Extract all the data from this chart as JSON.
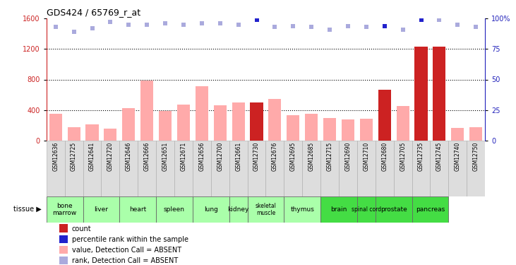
{
  "title": "GDS424 / 65769_r_at",
  "samples": [
    "GSM12636",
    "GSM12725",
    "GSM12641",
    "GSM12720",
    "GSM12646",
    "GSM12666",
    "GSM12651",
    "GSM12671",
    "GSM12656",
    "GSM12700",
    "GSM12661",
    "GSM12730",
    "GSM12676",
    "GSM12695",
    "GSM12685",
    "GSM12715",
    "GSM12690",
    "GSM12710",
    "GSM12680",
    "GSM12705",
    "GSM12735",
    "GSM12745",
    "GSM12740",
    "GSM12750"
  ],
  "bar_values": [
    350,
    175,
    215,
    155,
    420,
    785,
    390,
    475,
    715,
    465,
    500,
    495,
    545,
    330,
    350,
    290,
    280,
    285,
    665,
    455,
    1230,
    1235,
    165,
    175
  ],
  "bar_colors": [
    "#ffaaaa",
    "#ffaaaa",
    "#ffaaaa",
    "#ffaaaa",
    "#ffaaaa",
    "#ffaaaa",
    "#ffaaaa",
    "#ffaaaa",
    "#ffaaaa",
    "#ffaaaa",
    "#ffaaaa",
    "#cc2222",
    "#ffaaaa",
    "#ffaaaa",
    "#ffaaaa",
    "#ffaaaa",
    "#ffaaaa",
    "#ffaaaa",
    "#cc2222",
    "#ffaaaa",
    "#cc2222",
    "#cc2222",
    "#ffaaaa",
    "#ffaaaa"
  ],
  "rank_values": [
    93,
    89,
    92,
    97,
    95,
    95,
    96,
    95,
    96,
    96,
    95,
    99,
    93,
    94,
    93,
    91,
    94,
    93,
    94,
    91,
    99,
    99,
    95,
    93
  ],
  "rank_colors": [
    "#aaaadd",
    "#aaaadd",
    "#aaaadd",
    "#aaaadd",
    "#aaaadd",
    "#aaaadd",
    "#aaaadd",
    "#aaaadd",
    "#aaaadd",
    "#aaaadd",
    "#aaaadd",
    "#2222cc",
    "#aaaadd",
    "#aaaadd",
    "#aaaadd",
    "#aaaadd",
    "#aaaadd",
    "#aaaadd",
    "#2222cc",
    "#aaaadd",
    "#2222cc",
    "#aaaadd",
    "#aaaadd",
    "#aaaadd"
  ],
  "ylim_left": [
    0,
    1600
  ],
  "ylim_right": [
    0,
    100
  ],
  "yticks_left": [
    0,
    400,
    800,
    1200,
    1600
  ],
  "yticks_right": [
    0,
    25,
    50,
    75,
    100
  ],
  "tissues": [
    {
      "label": "bone\nmarrow",
      "start": 0,
      "end": 2,
      "color": "#aaffaa"
    },
    {
      "label": "liver",
      "start": 2,
      "end": 4,
      "color": "#aaffaa"
    },
    {
      "label": "heart",
      "start": 4,
      "end": 6,
      "color": "#aaffaa"
    },
    {
      "label": "spleen",
      "start": 6,
      "end": 8,
      "color": "#aaffaa"
    },
    {
      "label": "lung",
      "start": 8,
      "end": 10,
      "color": "#aaffaa"
    },
    {
      "label": "kidney",
      "start": 10,
      "end": 11,
      "color": "#aaffaa"
    },
    {
      "label": "skeletal\nmuscle",
      "start": 11,
      "end": 13,
      "color": "#aaffaa"
    },
    {
      "label": "thymus",
      "start": 13,
      "end": 15,
      "color": "#aaffaa"
    },
    {
      "label": "brain",
      "start": 15,
      "end": 17,
      "color": "#44dd44"
    },
    {
      "label": "spinal cord",
      "start": 17,
      "end": 18,
      "color": "#44dd44"
    },
    {
      "label": "prostate",
      "start": 18,
      "end": 20,
      "color": "#44dd44"
    },
    {
      "label": "pancreas",
      "start": 20,
      "end": 22,
      "color": "#44dd44"
    }
  ],
  "legend_items": [
    {
      "label": "count",
      "color": "#cc2222"
    },
    {
      "label": "percentile rank within the sample",
      "color": "#2222cc"
    },
    {
      "label": "value, Detection Call = ABSENT",
      "color": "#ffaaaa"
    },
    {
      "label": "rank, Detection Call = ABSENT",
      "color": "#aaaadd"
    }
  ],
  "left_axis_color": "#cc2222",
  "right_axis_color": "#2222bb",
  "grid_color": "black"
}
